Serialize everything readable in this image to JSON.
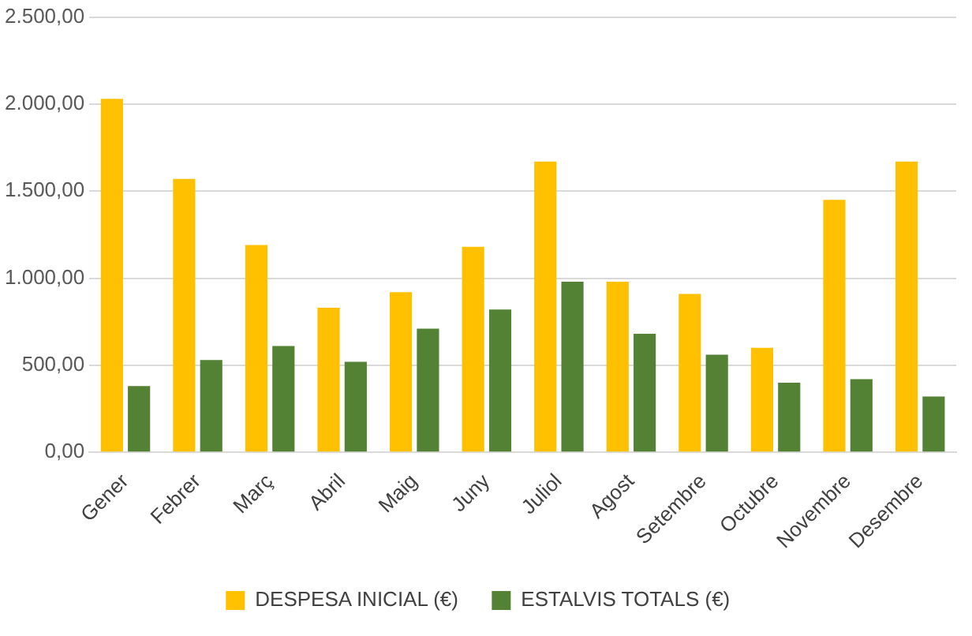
{
  "chart_data": {
    "type": "bar",
    "categories": [
      "Gener",
      "Febrer",
      "Març",
      "Abril",
      "Maig",
      "Juny",
      "Juliol",
      "Agost",
      "Setembre",
      "Octubre",
      "Novembre",
      "Desembre"
    ],
    "series": [
      {
        "name": "DESPESA INICIAL (€)",
        "color": "#ffc000",
        "values": [
          2030,
          1570,
          1190,
          830,
          920,
          1180,
          1670,
          980,
          910,
          600,
          1450,
          1670
        ]
      },
      {
        "name": "ESTALVIS TOTALS (€)",
        "color": "#548235",
        "values": [
          380,
          530,
          610,
          520,
          710,
          820,
          980,
          680,
          560,
          400,
          420,
          320
        ]
      }
    ],
    "ylim": [
      0,
      2500
    ],
    "yticks": [
      {
        "value": 0,
        "label": "0,00"
      },
      {
        "value": 500,
        "label": "500,00"
      },
      {
        "value": 1000,
        "label": "1.000,00"
      },
      {
        "value": 1500,
        "label": "1.500,00"
      },
      {
        "value": 2000,
        "label": "2.000,00"
      },
      {
        "value": 2500,
        "label": "2.500,00"
      }
    ],
    "grid": "y",
    "legend": "bottom"
  }
}
